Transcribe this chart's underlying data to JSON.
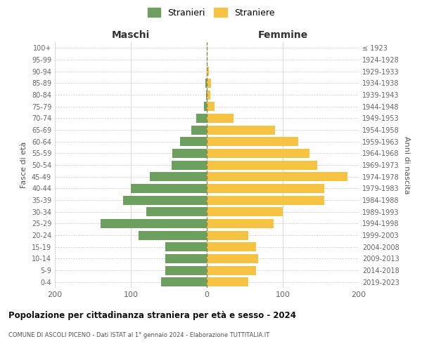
{
  "age_groups_bottom_to_top": [
    "0-4",
    "5-9",
    "10-14",
    "15-19",
    "20-24",
    "25-29",
    "30-34",
    "35-39",
    "40-44",
    "45-49",
    "50-54",
    "55-59",
    "60-64",
    "65-69",
    "70-74",
    "75-79",
    "80-84",
    "85-89",
    "90-94",
    "95-99",
    "100+"
  ],
  "birth_years_bottom_to_top": [
    "2019-2023",
    "2014-2018",
    "2009-2013",
    "2004-2008",
    "1999-2003",
    "1994-1998",
    "1989-1993",
    "1984-1988",
    "1979-1983",
    "1974-1978",
    "1969-1973",
    "1964-1968",
    "1959-1963",
    "1954-1958",
    "1949-1953",
    "1944-1948",
    "1939-1943",
    "1934-1938",
    "1929-1933",
    "1924-1928",
    "≤ 1923"
  ],
  "maschi_bottom_to_top": [
    60,
    55,
    55,
    55,
    90,
    140,
    80,
    110,
    100,
    75,
    46,
    45,
    35,
    20,
    14,
    4,
    1,
    2,
    0,
    0,
    0
  ],
  "femmine_bottom_to_top": [
    55,
    65,
    68,
    65,
    55,
    88,
    100,
    155,
    155,
    185,
    145,
    135,
    120,
    90,
    35,
    10,
    5,
    6,
    3,
    0,
    0
  ],
  "maschi_color": "#6d9f5e",
  "femmine_color": "#f5c242",
  "background_color": "#ffffff",
  "grid_color": "#cccccc",
  "title": "Popolazione per cittadinanza straniera per età e sesso - 2024",
  "subtitle": "COMUNE DI ASCOLI PICENO - Dati ISTAT al 1° gennaio 2024 - Elaborazione TUTTITALIA.IT",
  "label_maschi": "Maschi",
  "label_femmine": "Femmine",
  "ylabel_left": "Fasce di età",
  "ylabel_right": "Anni di nascita",
  "legend_maschi": "Stranieri",
  "legend_femmine": "Straniere",
  "xlim": 200,
  "bar_height": 0.78,
  "dashed_color": "#888855"
}
